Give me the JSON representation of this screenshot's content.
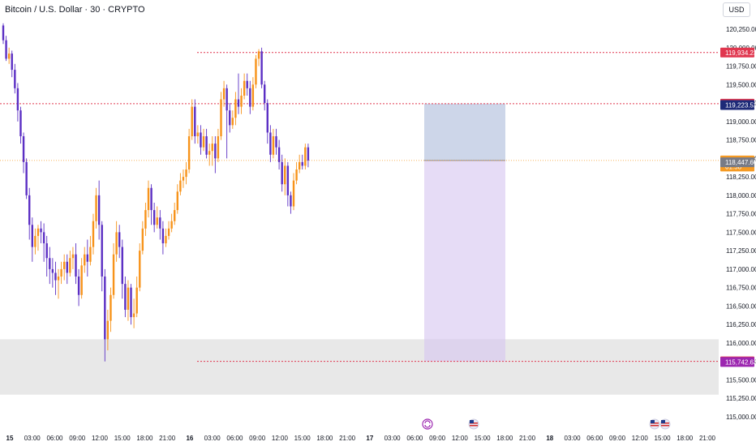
{
  "header": {
    "title": "Bitcoin / U.S. Dollar · 30 · CRYPTO",
    "currency": "USD"
  },
  "colors": {
    "up": "#f7931a",
    "down": "#5b2fc4",
    "red_line": "#e0374f",
    "gray_zone": "#d9d9d9",
    "target_zone": "#b8c4e0",
    "stop_zone": "#d6c4f0",
    "current": "#f59a23",
    "navy": "#1e2a78",
    "gray_tag": "#787b86",
    "purple_tag": "#9c27b0"
  },
  "chart_data": {
    "type": "candlestick",
    "title": "Bitcoin / U.S. Dollar · 30 · CRYPTO",
    "ylim": [
      115000,
      120500
    ],
    "y_ticks": [
      "120,250.00",
      "120,000.00",
      "119,750.00",
      "119,500.00",
      "119,250.00",
      "119,000.00",
      "118,750.00",
      "118,500.00",
      "118,250.00",
      "118,000.00",
      "117,750.00",
      "117,500.00",
      "117,250.00",
      "117,000.00",
      "116,750.00",
      "116,500.00",
      "116,250.00",
      "116,000.00",
      "115,750.00",
      "115,500.00",
      "115,250.00",
      "115,000.00"
    ],
    "x_ticks": [
      "15",
      "03:00",
      "06:00",
      "09:00",
      "12:00",
      "15:00",
      "18:00",
      "21:00",
      "16",
      "03:00",
      "06:00",
      "09:00",
      "12:00",
      "15:00",
      "18:00",
      "21:00",
      "17",
      "03:00",
      "06:00",
      "09:00",
      "12:00",
      "15:00",
      "18:00",
      "21:00",
      "18",
      "03:00",
      "06:00",
      "09:00",
      "12:00",
      "15:00",
      "18:00",
      "21:00"
    ],
    "levels": [
      {
        "price": 119934.23,
        "label": "119,934.23"
      },
      {
        "price": 119241.08,
        "label": "119,241.08"
      },
      {
        "price": 115751.08,
        "label": "115,751.08"
      }
    ],
    "price_tags": [
      {
        "label": "119,223.52",
        "price": 119223.52,
        "color": "navy"
      },
      {
        "label": "118,472.20",
        "price": 118472.2,
        "color": "current"
      },
      {
        "label": "01:58",
        "price": 118390,
        "color": "current"
      },
      {
        "label": "118,447.60",
        "price": 118447.6,
        "color": "gray_tag"
      },
      {
        "label": "115,742.63",
        "price": 115742.63,
        "color": "purple_tag"
      }
    ],
    "current_price": 118472.2,
    "demand_zone": [
      115300,
      116050
    ],
    "position": {
      "entry": 118472.2,
      "target": 119241.08,
      "stop": 115751.08
    },
    "candles": [
      [
        120300,
        120100,
        120330,
        120050
      ],
      [
        120100,
        119850,
        120160,
        119820
      ],
      [
        119850,
        119920,
        120000,
        119780
      ],
      [
        119920,
        119700,
        119960,
        119600
      ],
      [
        119700,
        119450,
        119780,
        119380
      ],
      [
        119450,
        119150,
        119520,
        119000
      ],
      [
        119150,
        118800,
        119200,
        118700
      ],
      [
        118800,
        118450,
        118850,
        118300
      ],
      [
        118450,
        118000,
        118500,
        117950
      ],
      [
        118000,
        117600,
        118100,
        117400
      ],
      [
        117600,
        117300,
        117700,
        117100
      ],
      [
        117300,
        117450,
        117550,
        117200
      ],
      [
        117450,
        117550,
        117600,
        117250
      ],
      [
        117550,
        117500,
        117650,
        117350
      ],
      [
        117500,
        117350,
        117620,
        117100
      ],
      [
        117350,
        117150,
        117450,
        116900
      ],
      [
        117150,
        117000,
        117300,
        116800
      ],
      [
        117000,
        116950,
        117150,
        116750
      ],
      [
        116950,
        116850,
        117100,
        116650
      ],
      [
        116850,
        116900,
        117000,
        116600
      ],
      [
        116900,
        117000,
        117100,
        116800
      ],
      [
        117000,
        117100,
        117200,
        116850
      ],
      [
        117100,
        116950,
        117200,
        116800
      ],
      [
        116950,
        117150,
        117250,
        116900
      ],
      [
        117150,
        117200,
        117300,
        117000
      ],
      [
        117200,
        116900,
        117350,
        116800
      ],
      [
        116900,
        116650,
        117000,
        116500
      ],
      [
        116650,
        117050,
        117150,
        116600
      ],
      [
        117050,
        117200,
        117300,
        116950
      ],
      [
        117200,
        117100,
        117400,
        116900
      ],
      [
        117100,
        117300,
        117450,
        117050
      ],
      [
        117300,
        117650,
        117750,
        117200
      ],
      [
        117650,
        118000,
        118100,
        117550
      ],
      [
        118000,
        117600,
        118200,
        117400
      ],
      [
        117600,
        116900,
        117650,
        116700
      ],
      [
        116900,
        116050,
        117000,
        115750
      ],
      [
        116050,
        116300,
        116450,
        115900
      ],
      [
        116300,
        116650,
        116750,
        116150
      ],
      [
        116650,
        117200,
        117350,
        116600
      ],
      [
        117200,
        117500,
        117650,
        117100
      ],
      [
        117500,
        117300,
        117600,
        117150
      ],
      [
        117300,
        116800,
        117400,
        116600
      ],
      [
        116800,
        116450,
        116900,
        116350
      ],
      [
        116450,
        116750,
        116850,
        116300
      ],
      [
        116750,
        116350,
        116800,
        116250
      ],
      [
        116350,
        116400,
        116600,
        116200
      ],
      [
        116400,
        116750,
        116900,
        116350
      ],
      [
        116750,
        117250,
        117350,
        116700
      ],
      [
        117250,
        117550,
        117650,
        117200
      ],
      [
        117550,
        117800,
        117900,
        117450
      ],
      [
        117800,
        118100,
        118200,
        117700
      ],
      [
        118100,
        117800,
        118150,
        117600
      ],
      [
        117800,
        117600,
        117900,
        117500
      ],
      [
        117600,
        117700,
        117850,
        117550
      ],
      [
        117700,
        117550,
        117800,
        117400
      ],
      [
        117550,
        117350,
        117650,
        117200
      ],
      [
        117350,
        117450,
        117550,
        117300
      ],
      [
        117450,
        117550,
        117650,
        117400
      ],
      [
        117550,
        117650,
        117750,
        117500
      ],
      [
        117650,
        117800,
        117900,
        117600
      ],
      [
        117800,
        118050,
        118150,
        117750
      ],
      [
        118050,
        118200,
        118300,
        118000
      ],
      [
        118200,
        118250,
        118350,
        118100
      ],
      [
        118250,
        118350,
        118450,
        118150
      ],
      [
        118350,
        118800,
        118900,
        118300
      ],
      [
        118800,
        119200,
        119300,
        118750
      ],
      [
        119200,
        118800,
        119300,
        118700
      ],
      [
        118800,
        118850,
        118950,
        118700
      ],
      [
        118850,
        118650,
        118950,
        118550
      ],
      [
        118650,
        118800,
        118900,
        118600
      ],
      [
        118800,
        118550,
        118900,
        118500
      ],
      [
        118550,
        118600,
        118700,
        118400
      ],
      [
        118600,
        118700,
        118800,
        118400
      ],
      [
        118700,
        118500,
        118800,
        118300
      ],
      [
        118500,
        118800,
        118900,
        118450
      ],
      [
        118800,
        119300,
        119400,
        118750
      ],
      [
        119300,
        119450,
        119550,
        119200
      ],
      [
        119450,
        119150,
        119500,
        118500
      ],
      [
        119150,
        118950,
        119250,
        118850
      ],
      [
        118950,
        119050,
        119150,
        118900
      ],
      [
        119050,
        119300,
        119400,
        118950
      ],
      [
        119300,
        119200,
        119650,
        119100
      ],
      [
        119200,
        119350,
        119450,
        119100
      ],
      [
        119350,
        119550,
        119650,
        119300
      ],
      [
        119550,
        119450,
        119650,
        119350
      ],
      [
        119450,
        119200,
        119550,
        119100
      ],
      [
        119200,
        119500,
        119600,
        119150
      ],
      [
        119500,
        119850,
        119900,
        119450
      ],
      [
        119850,
        119950,
        119980,
        119750
      ],
      [
        119950,
        119500,
        120000,
        119450
      ],
      [
        119500,
        119250,
        119550,
        119150
      ],
      [
        119250,
        118850,
        119300,
        118700
      ],
      [
        118850,
        118550,
        118950,
        118450
      ],
      [
        118550,
        118800,
        118900,
        118500
      ],
      [
        118800,
        118650,
        118900,
        118550
      ],
      [
        118650,
        118450,
        118750,
        118350
      ],
      [
        118450,
        118150,
        118550,
        118050
      ],
      [
        118150,
        118400,
        118500,
        118000
      ],
      [
        118400,
        118000,
        118450,
        117850
      ],
      [
        118000,
        117850,
        118050,
        117750
      ],
      [
        117850,
        118200,
        118300,
        117800
      ],
      [
        118200,
        118350,
        118450,
        118150
      ],
      [
        118350,
        118450,
        118550,
        118300
      ],
      [
        118450,
        118400,
        118550,
        118350
      ],
      [
        118400,
        118650,
        118700,
        118350
      ],
      [
        118650,
        118472,
        118700,
        118380
      ]
    ]
  }
}
